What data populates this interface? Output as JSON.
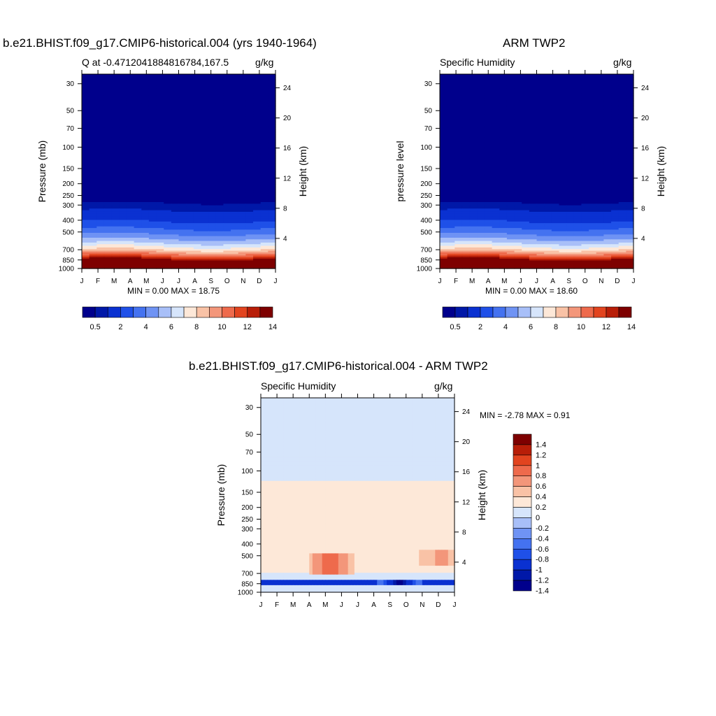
{
  "panel1": {
    "title": "b.e21.BHIST.f09_g17.CMIP6-historical.004 (yrs 1940-1964)",
    "left_string": "Q at -0.4712041884816784,167.5",
    "right_string": "g/kg",
    "stats": "MIN =   0.00 MAX =  18.75"
  },
  "panel2": {
    "title": "ARM TWP2",
    "left_string": "Specific Humidity",
    "right_string": "g/kg",
    "stats": "MIN =   0.00 MAX =  18.60"
  },
  "panel3": {
    "title": "b.e21.BHIST.f09_g17.CMIP6-historical.004 - ARM TWP2",
    "left_string": "Specific Humidity",
    "right_string": "g/kg",
    "stats": "MIN =  -2.78 MAX =    0.91"
  },
  "chart_data": [
    {
      "type": "heatmap",
      "title": "b.e21.BHIST.f09_g17.CMIP6-historical.004 (yrs 1940-1964)",
      "subtitle": "Q at -0.4712041884816784,167.5",
      "units": "g/kg",
      "xlabel": "",
      "ylabel": "Pressure (mb)",
      "y2label": "Height (km)",
      "x_ticks": [
        "J",
        "F",
        "M",
        "A",
        "M",
        "J",
        "J",
        "A",
        "S",
        "O",
        "N",
        "D",
        "J"
      ],
      "y_ticks": [
        30,
        50,
        70,
        100,
        150,
        200,
        250,
        300,
        400,
        500,
        700,
        850,
        1000
      ],
      "y2_ticks": [
        24,
        20,
        16,
        12,
        8,
        4
      ],
      "ylim": [
        1000,
        25
      ],
      "y_scale": "log",
      "colorbar_labels": [
        "0.5",
        "2",
        "4",
        "6",
        "8",
        "10",
        "12",
        "14"
      ],
      "colorbar_levels": [
        0.5,
        1,
        2,
        3,
        4,
        5,
        6,
        7,
        8,
        9,
        10,
        11,
        12,
        13,
        14
      ],
      "profile": {
        "pressure": [
          25,
          250,
          300,
          400,
          500,
          600,
          700,
          800,
          850,
          900,
          950,
          1000
        ],
        "values": [
          0.0,
          0.2,
          0.6,
          1.8,
          3.5,
          5.5,
          8.0,
          11.5,
          13.5,
          16,
          17.5,
          18
        ]
      },
      "min": 0.0,
      "max": 18.75
    },
    {
      "type": "heatmap",
      "title": "ARM TWP2",
      "subtitle": "Specific Humidity",
      "units": "g/kg",
      "xlabel": "",
      "ylabel": "pressure level",
      "y2label": "Height (km)",
      "x_ticks": [
        "J",
        "F",
        "M",
        "A",
        "M",
        "J",
        "J",
        "A",
        "S",
        "O",
        "N",
        "D",
        "J"
      ],
      "y_ticks": [
        30,
        50,
        70,
        100,
        150,
        200,
        250,
        300,
        400,
        500,
        700,
        850,
        1000
      ],
      "y2_ticks": [
        24,
        20,
        16,
        12,
        8,
        4
      ],
      "ylim": [
        1000,
        25
      ],
      "y_scale": "log",
      "colorbar_labels": [
        "0.5",
        "2",
        "4",
        "6",
        "8",
        "10",
        "12",
        "14"
      ],
      "colorbar_levels": [
        0.5,
        1,
        2,
        3,
        4,
        5,
        6,
        7,
        8,
        9,
        10,
        11,
        12,
        13,
        14
      ],
      "profile": {
        "pressure": [
          25,
          250,
          300,
          400,
          500,
          600,
          700,
          800,
          850,
          900,
          950,
          1000
        ],
        "values": [
          0.0,
          0.2,
          0.6,
          1.8,
          3.5,
          5.5,
          8.0,
          11.5,
          13.5,
          16,
          17.5,
          18
        ]
      },
      "min": 0.0,
      "max": 18.6
    },
    {
      "type": "heatmap",
      "title": "b.e21.BHIST.f09_g17.CMIP6-historical.004 - ARM TWP2",
      "subtitle": "Specific Humidity",
      "units": "g/kg",
      "xlabel": "",
      "ylabel": "Pressure (mb)",
      "y2label": "Height (km)",
      "x_ticks": [
        "J",
        "F",
        "M",
        "A",
        "M",
        "J",
        "J",
        "A",
        "S",
        "O",
        "N",
        "D",
        "J"
      ],
      "y_ticks": [
        30,
        50,
        70,
        100,
        150,
        200,
        250,
        300,
        400,
        500,
        700,
        850,
        1000
      ],
      "y2_ticks": [
        24,
        20,
        16,
        12,
        8,
        4
      ],
      "ylim": [
        1000,
        25
      ],
      "y_scale": "log",
      "colorbar_labels": [
        "1.4",
        "1.2",
        "1",
        "0.8",
        "0.6",
        "0.4",
        "0.2",
        "0",
        "-0.2",
        "-0.4",
        "-0.6",
        "-0.8",
        "-1",
        "-1.2",
        "-1.4"
      ],
      "colorbar_levels": [
        -1.4,
        -1.2,
        -1.0,
        -0.8,
        -0.6,
        -0.4,
        -0.2,
        0,
        0.2,
        0.4,
        0.6,
        0.8,
        1.0,
        1.2,
        1.4
      ],
      "features": [
        {
          "region": "upper atmosphere",
          "pressure_range": [
            25,
            120
          ],
          "value": -0.1
        },
        {
          "region": "mid troposphere",
          "pressure_range": [
            120,
            700
          ],
          "value": 0.1
        },
        {
          "region": "mid-level moist anomaly",
          "months": [
            "A",
            "M",
            "J"
          ],
          "pressure_range": [
            480,
            720
          ],
          "value": 0.8
        },
        {
          "region": "mid-level anomaly",
          "months": [
            "D"
          ],
          "pressure_range": [
            450,
            600
          ],
          "value": 0.5
        },
        {
          "region": "low-level dry band",
          "pressure_range": [
            780,
            880
          ],
          "value": -1.0
        },
        {
          "region": "low-level dry core",
          "months": [
            "S",
            "O"
          ],
          "pressure_range": [
            780,
            880
          ],
          "value": -1.5
        }
      ],
      "min": -2.78,
      "max": 0.91
    }
  ],
  "colors": {
    "background": "#ffffff",
    "axis": "#000000"
  }
}
